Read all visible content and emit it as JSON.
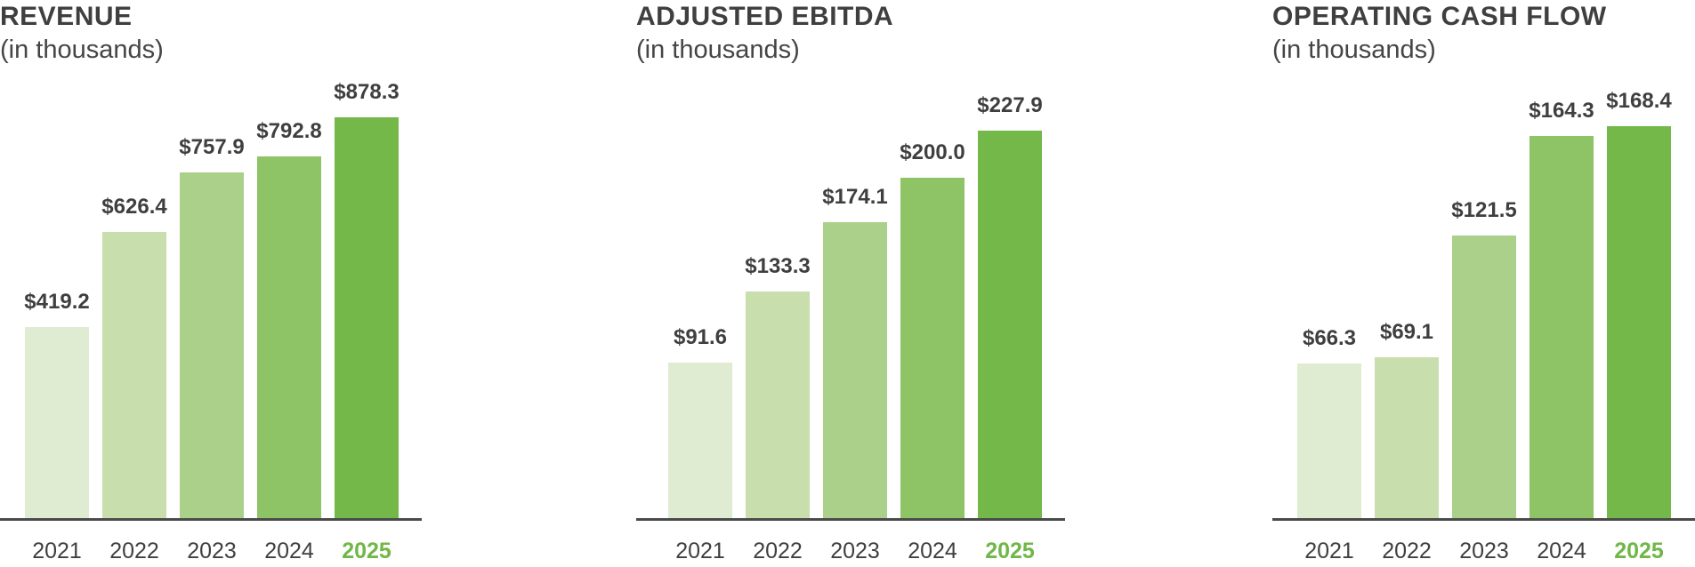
{
  "page": {
    "background": "#ffffff"
  },
  "colors": {
    "bar_palette": [
      "#dfecd2",
      "#c8dfad",
      "#abd089",
      "#8ec366",
      "#74b84a"
    ],
    "text": "#3f3f3f",
    "axis_line": "#4a4a4a",
    "highlight_year": "#70b747"
  },
  "chart_data": [
    {
      "type": "bar",
      "title": "REVENUE",
      "subtitle": "(in thousands)",
      "categories": [
        "2021",
        "2022",
        "2023",
        "2024",
        "2025"
      ],
      "values": [
        419.2,
        626.4,
        757.9,
        792.8,
        878.3
      ],
      "value_labels": [
        "$419.2",
        "$626.4",
        "$757.9",
        "$792.8",
        "$878.3"
      ],
      "highlight_last_category": true,
      "ylim": [
        0,
        878.3
      ],
      "grid": false,
      "legend": "none",
      "y_axis": "hidden"
    },
    {
      "type": "bar",
      "title": "ADJUSTED EBITDA",
      "subtitle": "(in thousands)",
      "categories": [
        "2021",
        "2022",
        "2023",
        "2024",
        "2025"
      ],
      "values": [
        91.6,
        133.3,
        174.1,
        200.0,
        227.9
      ],
      "value_labels": [
        "$91.6",
        "$133.3",
        "$174.1",
        "$200.0",
        "$227.9"
      ],
      "highlight_last_category": true,
      "ylim": [
        0,
        227.9
      ],
      "grid": false,
      "legend": "none",
      "y_axis": "hidden"
    },
    {
      "type": "bar",
      "title": "OPERATING CASH FLOW",
      "subtitle": "(in thousands)",
      "categories": [
        "2021",
        "2022",
        "2023",
        "2024",
        "2025"
      ],
      "values": [
        66.3,
        69.1,
        121.5,
        164.3,
        168.4
      ],
      "value_labels": [
        "$66.3",
        "$69.1",
        "$121.5",
        "$164.3",
        "$168.4"
      ],
      "highlight_last_category": true,
      "ylim": [
        0,
        168.4
      ],
      "grid": false,
      "legend": "none",
      "y_axis": "hidden"
    }
  ]
}
